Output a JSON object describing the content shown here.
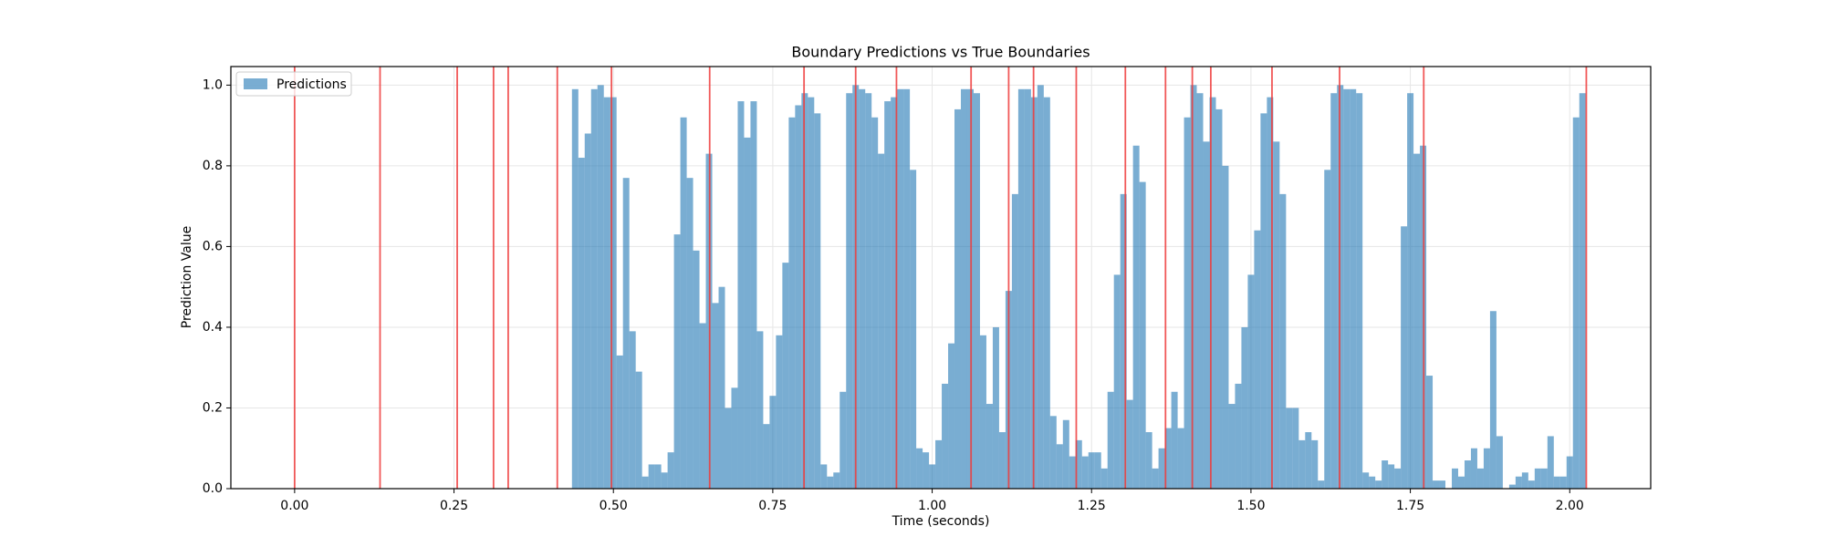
{
  "chart_data": {
    "type": "bar",
    "title": "Boundary Predictions vs True Boundaries",
    "x_label": "Time (seconds)",
    "y_label": "Prediction Value",
    "x": [
      0.44,
      0.45,
      0.46,
      0.47,
      0.48,
      0.49,
      0.5,
      0.51,
      0.52,
      0.53,
      0.54,
      0.55,
      0.56,
      0.57,
      0.58,
      0.59,
      0.6,
      0.61,
      0.62,
      0.63,
      0.64,
      0.65,
      0.66,
      0.67,
      0.68,
      0.69,
      0.7,
      0.71,
      0.72,
      0.73,
      0.74,
      0.75,
      0.76,
      0.77,
      0.78,
      0.79,
      0.8,
      0.81,
      0.82,
      0.83,
      0.84,
      0.85,
      0.86,
      0.87,
      0.88,
      0.89,
      0.9,
      0.91,
      0.92,
      0.93,
      0.94,
      0.95,
      0.96,
      0.97,
      0.98,
      0.99,
      1.0,
      1.01,
      1.02,
      1.03,
      1.04,
      1.05,
      1.06,
      1.07,
      1.08,
      1.09,
      1.1,
      1.11,
      1.12,
      1.13,
      1.14,
      1.15,
      1.16,
      1.17,
      1.18,
      1.19,
      1.2,
      1.21,
      1.22,
      1.23,
      1.24,
      1.25,
      1.26,
      1.27,
      1.28,
      1.29,
      1.3,
      1.31,
      1.32,
      1.33,
      1.34,
      1.35,
      1.36,
      1.37,
      1.38,
      1.39,
      1.4,
      1.41,
      1.42,
      1.43,
      1.44,
      1.45,
      1.46,
      1.47,
      1.48,
      1.49,
      1.5,
      1.51,
      1.52,
      1.53,
      1.54,
      1.55,
      1.56,
      1.57,
      1.58,
      1.59,
      1.6,
      1.61,
      1.62,
      1.63,
      1.64,
      1.65,
      1.66,
      1.67,
      1.68,
      1.69,
      1.7,
      1.71,
      1.72,
      1.73,
      1.74,
      1.75,
      1.76,
      1.77,
      1.78,
      1.79,
      1.8,
      1.81,
      1.82,
      1.83,
      1.84,
      1.85,
      1.86,
      1.87,
      1.88,
      1.89,
      1.9,
      1.91,
      1.92,
      1.93,
      1.94,
      1.95,
      1.96,
      1.97,
      1.98,
      1.99,
      2.0,
      2.01,
      2.02
    ],
    "series": [
      {
        "name": "Predictions",
        "color": "#1f77b4",
        "opacity": 0.6,
        "values": [
          0.99,
          0.82,
          0.88,
          0.99,
          1.0,
          0.97,
          0.97,
          0.33,
          0.77,
          0.39,
          0.29,
          0.03,
          0.06,
          0.06,
          0.04,
          0.09,
          0.63,
          0.92,
          0.77,
          0.59,
          0.41,
          0.83,
          0.46,
          0.5,
          0.2,
          0.25,
          0.96,
          0.87,
          0.96,
          0.39,
          0.16,
          0.23,
          0.38,
          0.56,
          0.92,
          0.95,
          0.98,
          0.97,
          0.93,
          0.06,
          0.03,
          0.04,
          0.24,
          0.98,
          1.0,
          0.99,
          0.98,
          0.92,
          0.83,
          0.96,
          0.97,
          0.99,
          0.99,
          0.79,
          0.1,
          0.09,
          0.06,
          0.12,
          0.26,
          0.36,
          0.94,
          0.99,
          0.99,
          0.98,
          0.38,
          0.21,
          0.4,
          0.14,
          0.49,
          0.73,
          0.99,
          0.99,
          0.97,
          1.0,
          0.97,
          0.18,
          0.11,
          0.17,
          0.08,
          0.12,
          0.08,
          0.09,
          0.09,
          0.05,
          0.24,
          0.53,
          0.73,
          0.22,
          0.85,
          0.76,
          0.14,
          0.05,
          0.1,
          0.15,
          0.24,
          0.15,
          0.92,
          1.0,
          0.98,
          0.86,
          0.97,
          0.94,
          0.8,
          0.21,
          0.26,
          0.4,
          0.53,
          0.64,
          0.93,
          0.97,
          0.86,
          0.73,
          0.2,
          0.2,
          0.12,
          0.14,
          0.12,
          0.02,
          0.79,
          0.98,
          1.0,
          0.99,
          0.99,
          0.98,
          0.04,
          0.03,
          0.02,
          0.07,
          0.06,
          0.05,
          0.65,
          0.98,
          0.83,
          0.85,
          0.28,
          0.02,
          0.02,
          0.0,
          0.05,
          0.03,
          0.07,
          0.1,
          0.05,
          0.1,
          0.44,
          0.13,
          0.0,
          0.01,
          0.03,
          0.04,
          0.02,
          0.05,
          0.05,
          0.13,
          0.03,
          0.03,
          0.08,
          0.92,
          0.98
        ]
      }
    ],
    "boundaries": [
      0.0,
      0.134,
      0.255,
      0.312,
      0.335,
      0.412,
      0.497,
      0.651,
      0.799,
      0.88,
      0.944,
      1.061,
      1.12,
      1.159,
      1.226,
      1.303,
      1.366,
      1.408,
      1.437,
      1.533,
      1.639,
      1.771,
      2.026
    ],
    "boundary_color": "#ef3b3b",
    "xlim": [
      -0.1,
      2.127
    ],
    "ylim": [
      0,
      1.046
    ],
    "xticks": [
      {
        "value": 0,
        "label": "0.00"
      },
      {
        "value": 0.25,
        "label": "0.25"
      },
      {
        "value": 0.5,
        "label": "0.50"
      },
      {
        "value": 0.75,
        "label": "0.75"
      },
      {
        "value": 1,
        "label": "1.00"
      },
      {
        "value": 1.25,
        "label": "1.25"
      },
      {
        "value": 1.5,
        "label": "1.50"
      },
      {
        "value": 1.75,
        "label": "1.75"
      },
      {
        "value": 2,
        "label": "2.00"
      }
    ],
    "yticks": [
      {
        "value": 0,
        "label": "0.0"
      },
      {
        "value": 0.2,
        "label": "0.2"
      },
      {
        "value": 0.4,
        "label": "0.4"
      },
      {
        "value": 0.6,
        "label": "0.6"
      },
      {
        "value": 0.8,
        "label": "0.8"
      },
      {
        "value": 1,
        "label": "1.0"
      }
    ],
    "grid": true,
    "legend": "upper left"
  }
}
